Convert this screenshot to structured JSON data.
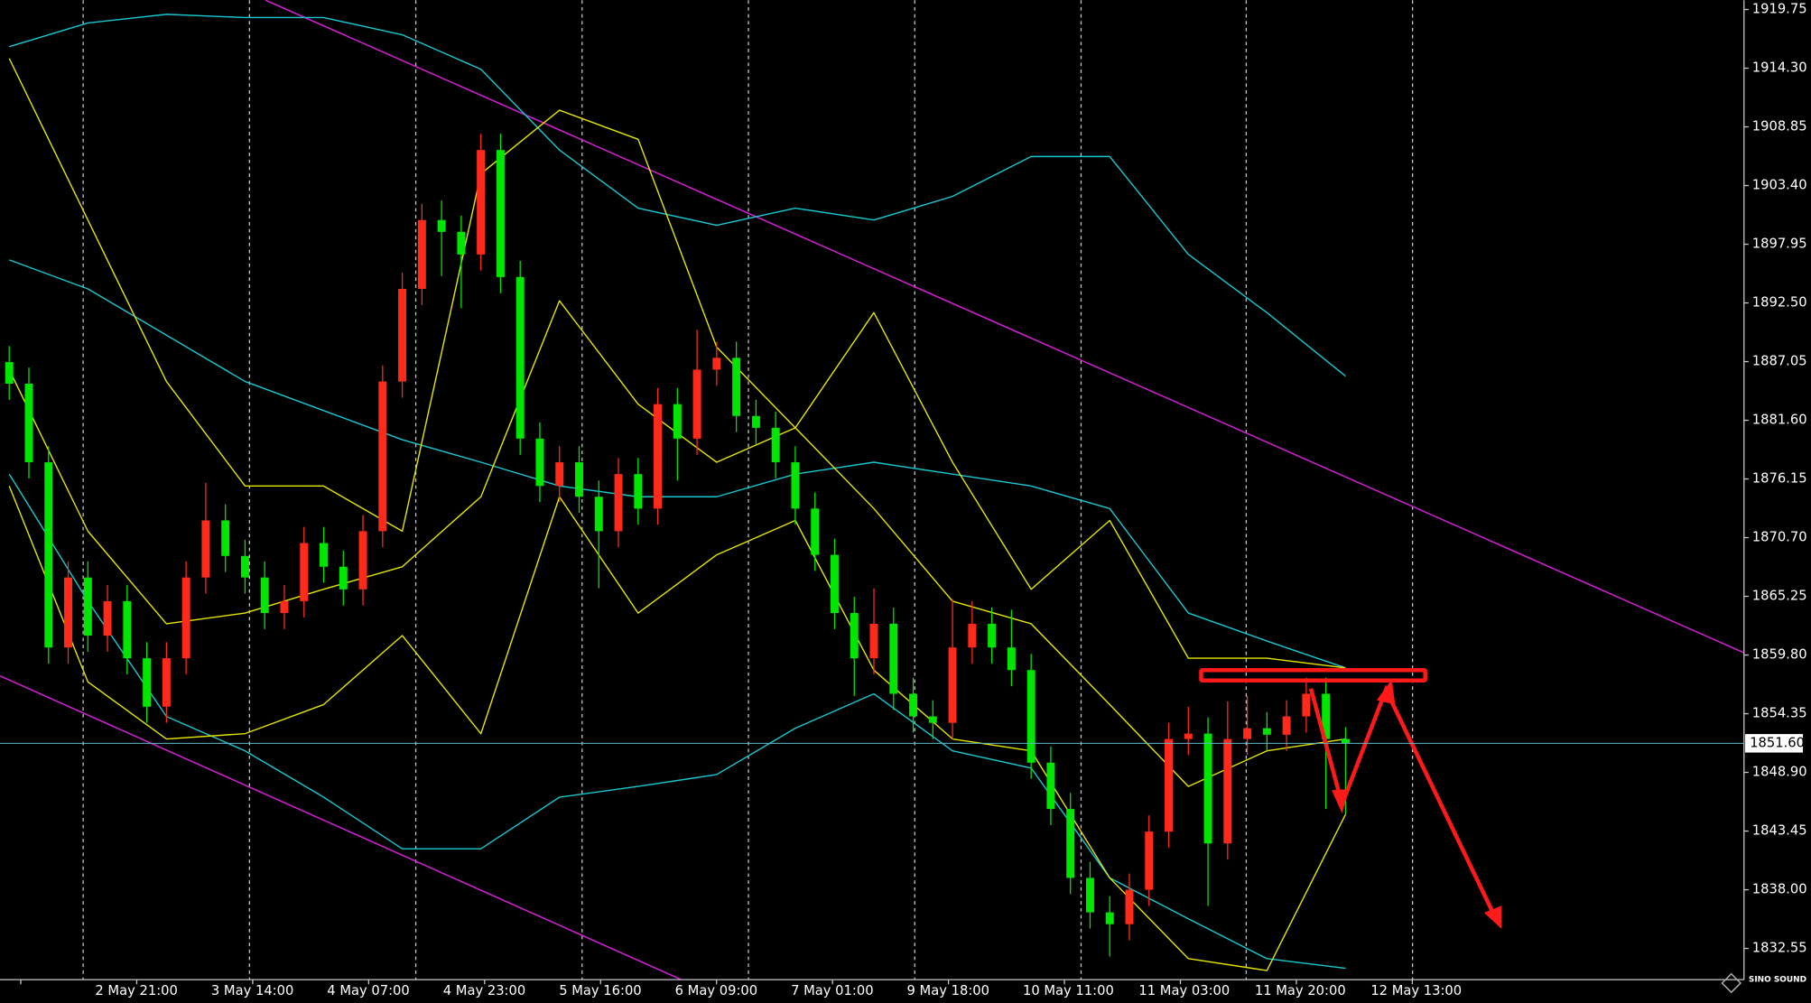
{
  "chart_data": {
    "type": "candlestick",
    "open": [
      1887.0,
      1885.0,
      1877.7,
      1860.5,
      1867.0,
      1861.6,
      1864.8,
      1859.5,
      1855.0,
      1859.5,
      1867.0,
      1872.3,
      1869.0,
      1867.0,
      1863.7,
      1864.8,
      1870.2,
      1868.0,
      1865.9,
      1871.3,
      1885.2,
      1893.8,
      1900.2,
      1899.1,
      1897.0,
      1906.7,
      1894.9,
      1879.9,
      1875.5,
      1877.7,
      1874.5,
      1871.3,
      1876.6,
      1873.4,
      1883.1,
      1879.9,
      1886.3,
      1887.4,
      1882.0,
      1880.9,
      1877.7,
      1873.4,
      1869.1,
      1863.7,
      1859.5,
      1862.7,
      1856.2,
      1854.1,
      1853.5,
      1860.5,
      1862.7,
      1860.5,
      1858.4,
      1849.8,
      1845.5,
      1839.1,
      1835.9,
      1834.8,
      1838.0,
      1843.4,
      1852.0,
      1852.5,
      1842.3,
      1852.0,
      1853.0,
      1852.4,
      1854.1,
      1856.2,
      1852.0
    ],
    "high": [
      1888.5,
      1886.5,
      1879.2,
      1868.5,
      1868.5,
      1866.3,
      1866.3,
      1861.0,
      1861.0,
      1868.5,
      1875.8,
      1873.8,
      1870.5,
      1868.5,
      1866.3,
      1871.7,
      1871.7,
      1869.5,
      1872.8,
      1886.7,
      1895.3,
      1901.7,
      1902.0,
      1900.6,
      1908.2,
      1908.2,
      1896.4,
      1881.4,
      1879.2,
      1879.2,
      1876.0,
      1878.1,
      1878.1,
      1884.6,
      1884.6,
      1890.0,
      1888.9,
      1888.9,
      1883.5,
      1882.4,
      1879.2,
      1874.9,
      1870.6,
      1865.2,
      1866.0,
      1864.2,
      1857.7,
      1855.6,
      1865.0,
      1864.8,
      1864.2,
      1864.0,
      1859.9,
      1851.3,
      1847.0,
      1840.6,
      1837.4,
      1839.5,
      1844.9,
      1853.5,
      1855.0,
      1854.0,
      1855.5,
      1856.0,
      1854.5,
      1855.6,
      1857.7,
      1857.7,
      1853.1
    ],
    "low": [
      1883.5,
      1876.2,
      1859.0,
      1859.0,
      1860.1,
      1860.1,
      1858.0,
      1853.5,
      1853.5,
      1858.0,
      1865.5,
      1867.5,
      1865.5,
      1862.2,
      1862.2,
      1863.3,
      1866.5,
      1864.4,
      1864.4,
      1869.8,
      1883.7,
      1892.3,
      1895.0,
      1892.0,
      1895.5,
      1893.4,
      1878.4,
      1874.0,
      1874.0,
      1873.0,
      1866.0,
      1869.8,
      1871.9,
      1871.9,
      1876.0,
      1878.4,
      1884.8,
      1880.5,
      1879.4,
      1876.2,
      1871.9,
      1867.6,
      1862.2,
      1856.0,
      1858.0,
      1854.7,
      1852.6,
      1852.0,
      1852.0,
      1859.0,
      1859.0,
      1856.9,
      1848.3,
      1844.0,
      1837.6,
      1834.4,
      1831.8,
      1833.3,
      1836.5,
      1841.9,
      1850.5,
      1836.5,
      1840.8,
      1850.5,
      1850.9,
      1850.9,
      1852.6,
      1845.5,
      1845.0
    ],
    "close": [
      1885.0,
      1877.7,
      1860.5,
      1867.0,
      1861.6,
      1864.8,
      1859.5,
      1855.0,
      1859.5,
      1867.0,
      1872.3,
      1869.0,
      1867.0,
      1863.7,
      1864.8,
      1870.2,
      1868.0,
      1865.9,
      1871.3,
      1885.2,
      1893.8,
      1900.2,
      1899.1,
      1897.0,
      1906.7,
      1894.9,
      1879.9,
      1875.5,
      1877.7,
      1874.5,
      1871.3,
      1876.6,
      1873.4,
      1883.1,
      1879.9,
      1886.3,
      1887.4,
      1882.0,
      1880.9,
      1877.7,
      1873.4,
      1869.1,
      1863.7,
      1859.5,
      1862.7,
      1856.2,
      1854.1,
      1853.5,
      1860.5,
      1862.7,
      1860.5,
      1858.4,
      1849.8,
      1845.5,
      1839.1,
      1835.9,
      1834.8,
      1838.0,
      1843.4,
      1852.0,
      1852.5,
      1842.3,
      1852.0,
      1853.0,
      1852.4,
      1854.1,
      1856.2,
      1852.0,
      1851.6
    ],
    "up_color": "#ff2a1a",
    "down_color": "#00e600",
    "overlays": [
      {
        "color": "#18c8d0",
        "values": [
          1916.3,
          1918.5,
          1919.3,
          1919.0,
          1919.0,
          1917.4,
          1914.2,
          1906.7,
          1901.3,
          1899.7,
          1901.3,
          1900.2,
          1902.4,
          1906.1,
          1906.1,
          1897.0,
          1891.6,
          1885.7
        ]
      },
      {
        "color": "#18c8d0",
        "values": [
          1896.5,
          1893.8,
          1889.5,
          1885.2,
          1882.5,
          1879.8,
          1877.7,
          1875.5,
          1874.5,
          1874.5,
          1876.6,
          1877.7,
          1876.6,
          1875.5,
          1873.4,
          1863.7,
          1861.1,
          1858.6
        ]
      },
      {
        "color": "#18c8d0",
        "values": [
          1876.6,
          1864.8,
          1854.1,
          1850.9,
          1846.6,
          1841.8,
          1841.8,
          1846.6,
          1847.6,
          1848.7,
          1853.0,
          1856.2,
          1850.9,
          1849.3,
          1839.1,
          1835.3,
          1831.6,
          1830.7
        ]
      },
      {
        "color": "#e6e600",
        "values": [
          1915.2,
          1900.2,
          1885.2,
          1875.5,
          1875.5,
          1871.3,
          1904.5,
          1910.4,
          1907.7,
          1888.4,
          1880.9,
          1891.6,
          1877.7,
          1865.9,
          1872.3,
          1859.5,
          1859.5,
          1858.6
        ]
      },
      {
        "color": "#e6e600",
        "values": [
          1886.3,
          1871.3,
          1862.7,
          1863.7,
          1865.9,
          1868.0,
          1874.5,
          1892.7,
          1883.1,
          1877.7,
          1880.9,
          1873.4,
          1864.8,
          1862.7,
          1855.2,
          1847.6,
          1850.9,
          1852.0
        ]
      },
      {
        "color": "#e6e600",
        "values": [
          1875.5,
          1857.3,
          1852.0,
          1852.5,
          1855.2,
          1861.6,
          1852.5,
          1874.5,
          1863.7,
          1869.1,
          1872.3,
          1858.4,
          1852.0,
          1850.9,
          1839.1,
          1831.6,
          1830.5,
          1845.0
        ]
      }
    ],
    "x_labels": [
      ":00",
      "2 May 21:00",
      "3 May 14:00",
      "4 May 07:00",
      "4 May 23:00",
      "5 May 16:00",
      "6 May 09:00",
      "7 May 01:00",
      "9 May 18:00",
      "10 May 11:00",
      "11 May 03:00",
      "11 May 20:00",
      "12 May 13:00"
    ],
    "ylim": [
      1829.65,
      1920.61
    ],
    "yticks": [
      1919.75,
      {
        "value": 1914.3,
        "label": "1914.30"
      },
      1908.85,
      {
        "value": 1903.4,
        "label": "1903.40"
      },
      1897.95,
      {
        "value": 1892.5,
        "label": "1892.50"
      },
      1887.05,
      {
        "value": 1881.6,
        "label": "1881.60"
      },
      1876.15,
      {
        "value": 1870.7,
        "label": "1870.70"
      },
      1865.25,
      {
        "value": 1859.8,
        "label": "1859.80"
      },
      1854.35,
      {
        "value": 1848.9,
        "label": "1848.90"
      },
      1843.45,
      {
        "value": 1838.0,
        "label": "1838.00"
      },
      1832.55
    ],
    "last_price": {
      "value": 1851.6,
      "label": "1851.60"
    },
    "logo": "SINO SOUND"
  }
}
